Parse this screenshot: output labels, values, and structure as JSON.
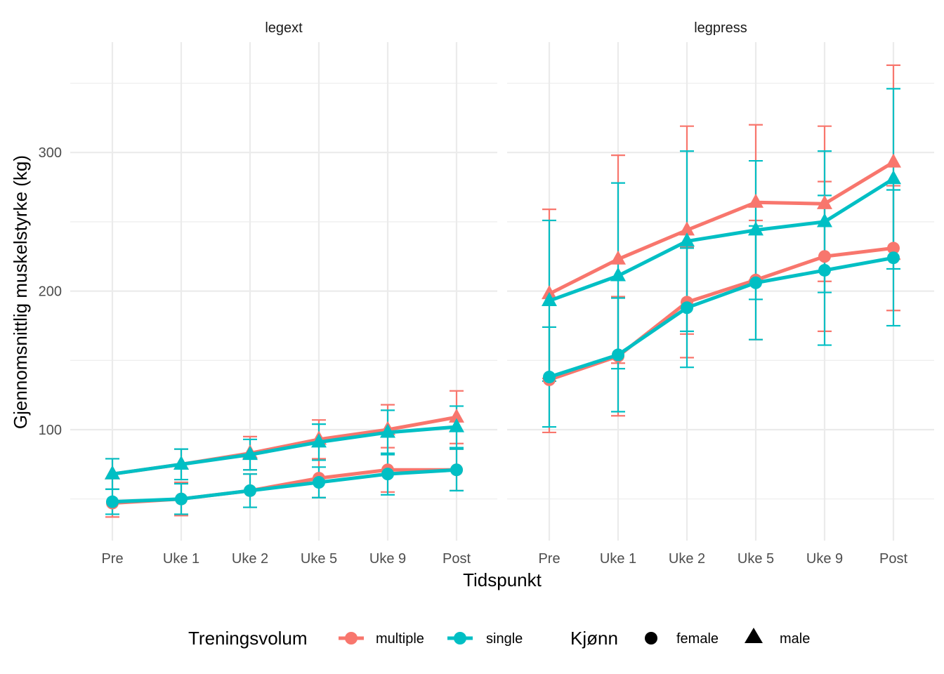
{
  "chart_data": {
    "type": "line",
    "xlabel": "Tidspunkt",
    "ylabel": "Gjennomsnittlig muskelstyrke (kg)",
    "categories": [
      "Pre",
      "Uke 1",
      "Uke 2",
      "Uke 5",
      "Uke 9",
      "Post"
    ],
    "ylim": [
      25,
      370
    ],
    "y_major_ticks": [
      100,
      200,
      300
    ],
    "y_minor_ticks": [
      50,
      150,
      250,
      350
    ],
    "grid": true,
    "colors": {
      "multiple": "#F8766D",
      "single": "#00BFC4"
    },
    "panels": [
      {
        "name": "legext",
        "series": [
          {
            "volum": "multiple",
            "sex": "female",
            "values": [
              47,
              50,
              56,
              65,
              71,
              71
            ],
            "err": [
              10,
              12,
              12,
              14,
              16,
              15
            ]
          },
          {
            "volum": "single",
            "sex": "female",
            "values": [
              48,
              50,
              56,
              62,
              68,
              71
            ],
            "err": [
              9,
              11,
              12,
              11,
              15,
              15
            ]
          },
          {
            "volum": "multiple",
            "sex": "male",
            "values": [
              68,
              75,
              83,
              93,
              100,
              109
            ],
            "err": [
              11,
              11,
              12,
              14,
              18,
              19
            ]
          },
          {
            "volum": "single",
            "sex": "male",
            "values": [
              68,
              75,
              82,
              91,
              98,
              102
            ],
            "err": [
              11,
              11,
              11,
              13,
              16,
              15
            ]
          }
        ]
      },
      {
        "name": "legpress",
        "series": [
          {
            "volum": "multiple",
            "sex": "female",
            "values": [
              136,
              153,
              192,
              208,
              225,
              231
            ],
            "err": [
              38,
              43,
              40,
              43,
              54,
              45
            ]
          },
          {
            "volum": "single",
            "sex": "female",
            "values": [
              138,
              154,
              188,
              206,
              215,
              224
            ],
            "err": [
              36,
              41,
              43,
              41,
              54,
              49
            ]
          },
          {
            "volum": "multiple",
            "sex": "male",
            "values": [
              198,
              223,
              244,
              264,
              263,
              293
            ],
            "err": [
              61,
              75,
              75,
              56,
              56,
              70
            ]
          },
          {
            "volum": "single",
            "sex": "male",
            "values": [
              193,
              211,
              236,
              244,
              250,
              281
            ],
            "err": [
              58,
              67,
              65,
              50,
              51,
              65
            ]
          }
        ]
      }
    ],
    "legend": {
      "position": "bottom",
      "color_title": "Treningsvolum",
      "color_items": [
        "multiple",
        "single"
      ],
      "shape_title": "Kjønn",
      "shape_items": [
        {
          "label": "female",
          "shape": "circle"
        },
        {
          "label": "male",
          "shape": "triangle"
        }
      ]
    }
  }
}
